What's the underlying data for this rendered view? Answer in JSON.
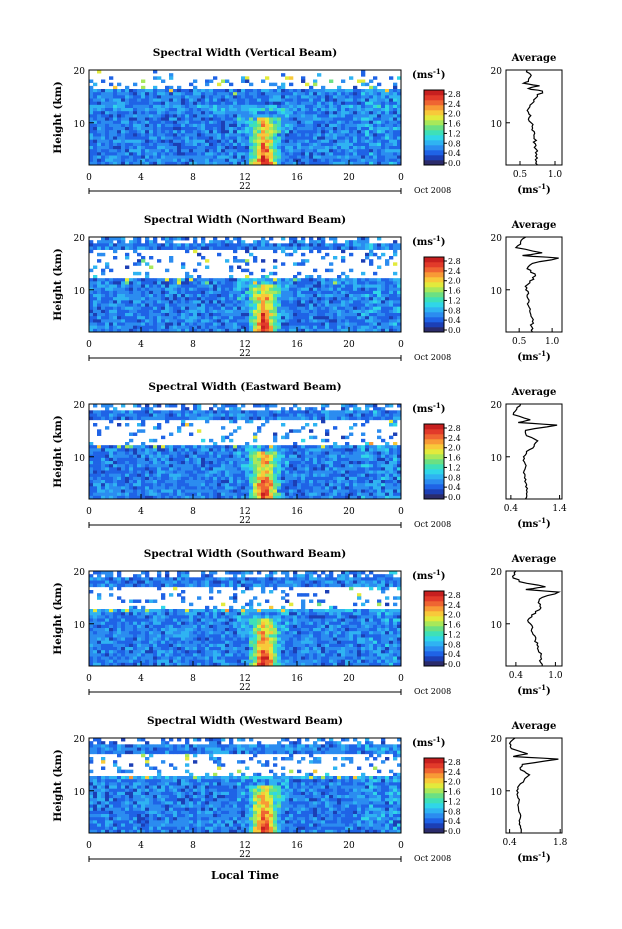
{
  "figure": {
    "bottom_xlabel": "Local Time"
  },
  "colorbar": {
    "unit": "(ms",
    "unit_sup": "-1",
    "ticks": [
      "2.8",
      "2.4",
      "2.0",
      "1.6",
      "1.2",
      "0.8",
      "0.4",
      "0.0"
    ],
    "colors": [
      "#2b2b6b",
      "#1c3fb5",
      "#1f63e6",
      "#2b8cf0",
      "#2fb3f2",
      "#30d6e8",
      "#3ee0b8",
      "#6be083",
      "#a8e85a",
      "#e2ea3c",
      "#f8c93a",
      "#f89a36",
      "#ef6532",
      "#e23a2a",
      "#c71f1f"
    ]
  },
  "chart_data": [
    {
      "type": "heatmap",
      "title": "Spectral Width (Vertical Beam)",
      "ylabel": "Height (km)",
      "x_ticks": [
        "0",
        "4",
        "8",
        "12",
        "16",
        "20",
        "0"
      ],
      "date_label": "22",
      "month_label": "Oct 2008",
      "xlim": [
        0,
        24
      ],
      "ylim": [
        2,
        20
      ],
      "y_ticks": [
        "20",
        "10"
      ],
      "color_range": [
        0.0,
        3.0
      ],
      "features": {
        "white_gap_km": [
          16.5,
          20
        ],
        "high_width_time_h": 13.5,
        "high_width_km": [
          2,
          8
        ]
      },
      "profile": {
        "title": "Average",
        "xlabel": "(ms",
        "xlabel_sup": "-1",
        "x_ticks": [
          "0.5",
          "1.0"
        ],
        "xlim": [
          0.3,
          1.1
        ],
        "y_ticks": [
          "20",
          "10"
        ],
        "ylim": [
          2,
          20
        ],
        "height_km": [
          2,
          3,
          4,
          5,
          6,
          7,
          8,
          9,
          10,
          11,
          12,
          13,
          14,
          15,
          16,
          16.5,
          17,
          17.5,
          18,
          19,
          20
        ],
        "value": [
          0.75,
          0.72,
          0.74,
          0.73,
          0.72,
          0.7,
          0.71,
          0.68,
          0.66,
          0.63,
          0.62,
          0.64,
          0.7,
          0.75,
          0.82,
          0.62,
          0.78,
          0.55,
          0.62,
          0.66,
          0.6
        ]
      }
    },
    {
      "type": "heatmap",
      "title": "Spectral Width (Northward Beam)",
      "ylabel": "Height (km)",
      "x_ticks": [
        "0",
        "4",
        "8",
        "12",
        "16",
        "20",
        "0"
      ],
      "date_label": "22",
      "month_label": "Oct 2008",
      "xlim": [
        0,
        24
      ],
      "ylim": [
        2,
        20
      ],
      "y_ticks": [
        "20",
        "10"
      ],
      "color_range": [
        0.0,
        3.0
      ],
      "features": {
        "white_gap_km": [
          12,
          17.5
        ],
        "high_width_time_h": 13.5,
        "high_width_km": [
          2,
          8
        ]
      },
      "profile": {
        "title": "Average",
        "xlabel": "(ms",
        "xlabel_sup": "-1",
        "x_ticks": [
          "0.5",
          "1.0"
        ],
        "xlim": [
          0.3,
          1.15
        ],
        "y_ticks": [
          "20",
          "10"
        ],
        "ylim": [
          2,
          20
        ],
        "height_km": [
          2,
          3,
          4,
          5,
          6,
          7,
          8,
          9,
          10,
          11,
          12,
          13,
          14,
          15,
          16,
          16.5,
          17,
          18,
          19,
          20
        ],
        "value": [
          0.7,
          0.69,
          0.7,
          0.68,
          0.66,
          0.64,
          0.65,
          0.62,
          0.6,
          0.63,
          0.72,
          0.74,
          0.62,
          0.7,
          1.1,
          0.55,
          0.85,
          0.45,
          0.52,
          0.6
        ]
      }
    },
    {
      "type": "heatmap",
      "title": "Spectral Width (Eastward Beam)",
      "ylabel": "Height (km)",
      "x_ticks": [
        "0",
        "4",
        "8",
        "12",
        "16",
        "20",
        "0"
      ],
      "date_label": "22",
      "month_label": "Oct 2008",
      "xlim": [
        0,
        24
      ],
      "ylim": [
        2,
        20
      ],
      "y_ticks": [
        "20",
        "10"
      ],
      "color_range": [
        0.0,
        3.0
      ],
      "features": {
        "white_gap_km": [
          12.5,
          17
        ],
        "high_width_time_h": 13.5,
        "high_width_km": [
          2,
          8
        ]
      },
      "profile": {
        "title": "Average",
        "xlabel": "(ms",
        "xlabel_sup": "-1",
        "x_ticks": [
          "0.4",
          "1.4"
        ],
        "xlim": [
          0.3,
          1.45
        ],
        "y_ticks": [
          "20",
          "10"
        ],
        "ylim": [
          2,
          20
        ],
        "height_km": [
          2,
          3,
          4,
          5,
          6,
          7,
          8,
          9,
          10,
          11,
          12,
          13,
          14,
          15,
          16,
          16.5,
          17,
          18,
          19,
          20
        ],
        "value": [
          0.7,
          0.72,
          0.74,
          0.71,
          0.68,
          0.66,
          0.7,
          0.68,
          0.66,
          0.72,
          0.88,
          0.95,
          0.72,
          0.7,
          1.35,
          0.55,
          0.8,
          0.45,
          0.52,
          0.6
        ]
      }
    },
    {
      "type": "heatmap",
      "title": "Spectral Width (Southward Beam)",
      "ylabel": "Height (km)",
      "x_ticks": [
        "0",
        "4",
        "8",
        "12",
        "16",
        "20",
        "0"
      ],
      "date_label": "22",
      "month_label": "Oct 2008",
      "xlim": [
        0,
        24
      ],
      "ylim": [
        2,
        20
      ],
      "y_ticks": [
        "20",
        "10"
      ],
      "color_range": [
        0.0,
        3.0
      ],
      "features": {
        "white_gap_km": [
          13,
          17
        ],
        "high_width_time_h": 13.5,
        "high_width_km": [
          2,
          8
        ]
      },
      "profile": {
        "title": "Average",
        "xlabel": "(ms",
        "xlabel_sup": "-1",
        "x_ticks": [
          "0.4",
          "1.0"
        ],
        "xlim": [
          0.25,
          1.1
        ],
        "y_ticks": [
          "20",
          "10"
        ],
        "ylim": [
          2,
          20
        ],
        "height_km": [
          2,
          3,
          4,
          5,
          6,
          7,
          8,
          9,
          10,
          11,
          12,
          13,
          14,
          15,
          16,
          16.5,
          17,
          18,
          19,
          20
        ],
        "value": [
          0.8,
          0.76,
          0.78,
          0.74,
          0.72,
          0.7,
          0.66,
          0.64,
          0.62,
          0.6,
          0.7,
          0.78,
          0.74,
          0.8,
          1.05,
          0.55,
          0.85,
          0.45,
          0.35,
          0.4
        ]
      }
    },
    {
      "type": "heatmap",
      "title": "Spectral Width (Westward Beam)",
      "ylabel": "Height (km)",
      "x_ticks": [
        "0",
        "4",
        "8",
        "12",
        "16",
        "20",
        "0"
      ],
      "date_label": "22",
      "month_label": "Oct 2008",
      "xlim": [
        0,
        24
      ],
      "ylim": [
        2,
        20
      ],
      "y_ticks": [
        "20",
        "10"
      ],
      "color_range": [
        0.0,
        3.0
      ],
      "features": {
        "white_gap_km": [
          13,
          17
        ],
        "high_width_time_h": 13.5,
        "high_width_km": [
          2,
          8
        ]
      },
      "profile": {
        "title": "Average",
        "xlabel": "(ms",
        "xlabel_sup": "-1",
        "x_ticks": [
          "0.4",
          "1.8"
        ],
        "xlim": [
          0.3,
          1.85
        ],
        "y_ticks": [
          "20",
          "10"
        ],
        "ylim": [
          2,
          20
        ],
        "height_km": [
          2,
          3,
          4,
          5,
          6,
          7,
          8,
          9,
          10,
          11,
          12,
          13,
          14,
          15,
          16,
          16.5,
          17,
          18,
          19,
          20
        ],
        "value": [
          0.72,
          0.7,
          0.68,
          0.7,
          0.66,
          0.64,
          0.66,
          0.62,
          0.6,
          0.66,
          0.8,
          0.95,
          0.7,
          0.75,
          1.75,
          0.5,
          0.9,
          0.45,
          0.4,
          0.55
        ]
      }
    }
  ]
}
